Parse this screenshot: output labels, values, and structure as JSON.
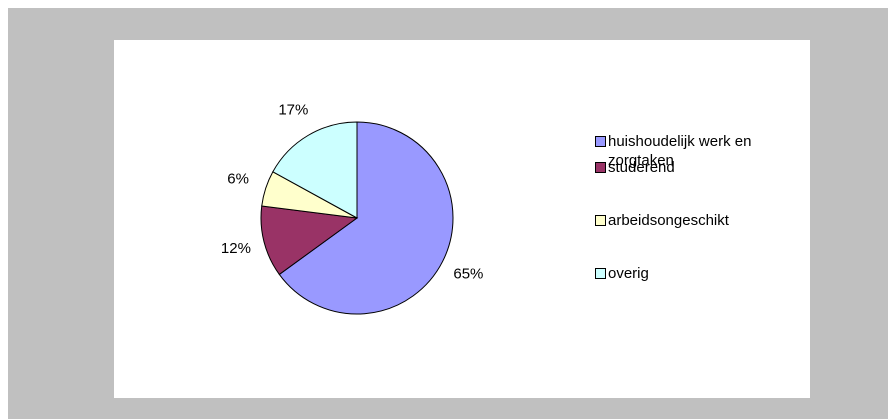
{
  "chart_data": {
    "type": "pie",
    "categories": [
      "huishoudelijk werk en zorgtaken",
      "studerend",
      "arbeidsongeschikt",
      "overig"
    ],
    "values": [
      65,
      12,
      6,
      17
    ],
    "value_labels": [
      "65%",
      "12%",
      "6%",
      "17%"
    ],
    "colors": [
      "#9999ff",
      "#993366",
      "#ffffcc",
      "#ccffff"
    ]
  }
}
